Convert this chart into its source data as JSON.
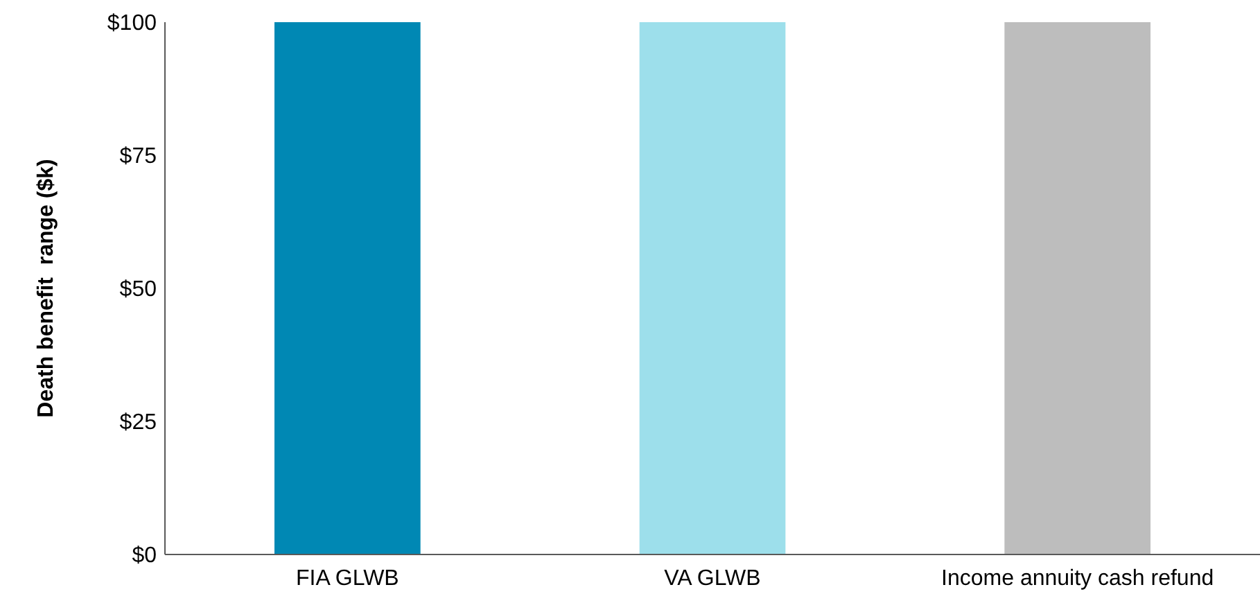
{
  "chart_data": {
    "type": "bar",
    "ylabel": "Death benefit  range ($k)",
    "categories": [
      "FIA GLWB",
      "VA GLWB",
      "Income annuity cash refund"
    ],
    "values": [
      100,
      100,
      100
    ],
    "colors": [
      "#0088b4",
      "#9ddfeb",
      "#bdbdbd"
    ],
    "ylim": [
      0,
      100
    ],
    "yticks": [
      {
        "value": 0,
        "label": "$0"
      },
      {
        "value": 25,
        "label": "$25"
      },
      {
        "value": 50,
        "label": "$50"
      },
      {
        "value": 75,
        "label": "$75"
      },
      {
        "value": 100,
        "label": "$100"
      }
    ],
    "grid": false
  }
}
